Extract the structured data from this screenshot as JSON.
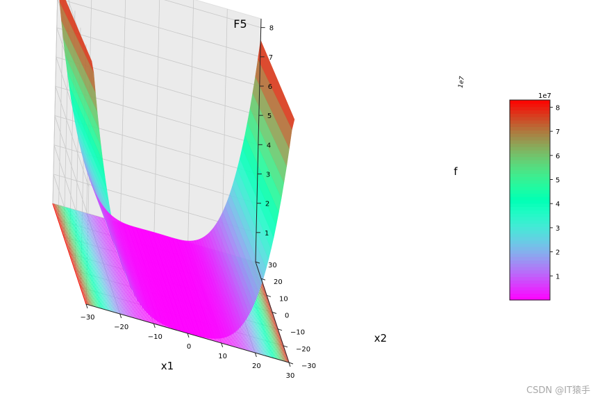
{
  "chart_data": {
    "type": "surface3d",
    "title": "F5",
    "xlabel": "x1",
    "ylabel": "x2",
    "zlabel": "f",
    "function": "rosenbrock",
    "x_range": [
      -30,
      30
    ],
    "y_range": [
      -30,
      30
    ],
    "z_range": [
      0,
      83000000
    ],
    "x_ticks": [
      -30,
      -20,
      -10,
      0,
      10,
      20,
      30
    ],
    "y_ticks": [
      -30,
      -20,
      -10,
      0,
      10,
      20,
      30
    ],
    "z_ticks": [
      1,
      2,
      3,
      4,
      5,
      6,
      7,
      8
    ],
    "z_offset": "1e7",
    "colormap": "rainbow",
    "contour_offset": "floor",
    "grid": true,
    "colorbar": {
      "ticks": [
        1,
        2,
        3,
        4,
        5,
        6,
        7,
        8
      ],
      "offset": "1e7",
      "min": 0,
      "max": 83000000,
      "placement": "right"
    }
  },
  "watermark": "CSDN @IT猿手"
}
